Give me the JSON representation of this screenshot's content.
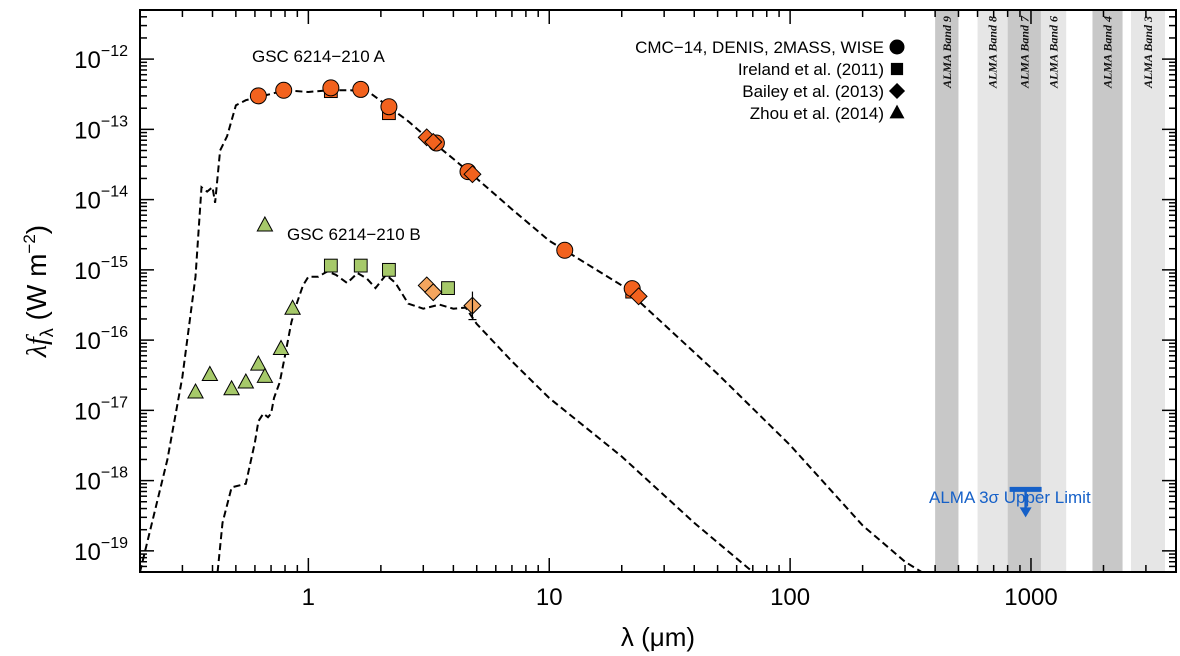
{
  "chart_data": {
    "type": "scatter",
    "x_scale": "log",
    "y_scale": "log",
    "xlim": [
      0.2,
      4000
    ],
    "ylim": [
      5e-20,
      5e-12
    ],
    "xlabel": "λ (μm)",
    "ylabel": "λf_λ (W m^-2)",
    "x_ticks": [
      {
        "value": 1,
        "label": "1"
      },
      {
        "value": 10,
        "label": "10"
      },
      {
        "value": 100,
        "label": "100"
      },
      {
        "value": 1000,
        "label": "1000"
      }
    ],
    "y_ticks": [
      {
        "value": 1e-12,
        "mant": "10",
        "exp": "−12"
      },
      {
        "value": 1e-13,
        "mant": "10",
        "exp": "−13"
      },
      {
        "value": 1e-14,
        "mant": "10",
        "exp": "−14"
      },
      {
        "value": 1e-15,
        "mant": "10",
        "exp": "−15"
      },
      {
        "value": 1e-16,
        "mant": "10",
        "exp": "−16"
      },
      {
        "value": 1e-17,
        "mant": "10",
        "exp": "−17"
      },
      {
        "value": 1e-18,
        "mant": "10",
        "exp": "−18"
      },
      {
        "value": 1e-19,
        "mant": "10",
        "exp": "−19"
      }
    ],
    "alma_bands": [
      {
        "label": "ALMA Band 9",
        "range": [
          400,
          500
        ],
        "shade": "#c8c8c8"
      },
      {
        "label": "ALMA Band 8",
        "range": [
          600,
          800
        ],
        "shade": "#e6e6e6"
      },
      {
        "label": "ALMA Band 7",
        "range": [
          800,
          1100
        ],
        "shade": "#c8c8c8"
      },
      {
        "label": "ALMA Band 6",
        "range": [
          1100,
          1400
        ],
        "shade": "#e6e6e6"
      },
      {
        "label": "ALMA Band 4",
        "range": [
          1800,
          2400
        ],
        "shade": "#c8c8c8"
      },
      {
        "label": "ALMA Band 3",
        "range": [
          2600,
          3600
        ],
        "shade": "#e6e6e6"
      }
    ],
    "annotations": {
      "primary": "GSC 6214−210 A",
      "companion": "GSC 6214−210 B",
      "alma_limit": "ALMA 3σ Upper Limit"
    },
    "legend": {
      "placement": "top-right",
      "entries": [
        {
          "label": "CMC−14, DENIS, 2MASS, WISE",
          "marker": "circle"
        },
        {
          "label": "Ireland et al. (2011)",
          "marker": "square"
        },
        {
          "label": "Bailey et al. (2013)",
          "marker": "diamond"
        },
        {
          "label": "Zhou et al. (2014)",
          "marker": "triangle"
        }
      ]
    },
    "colors": {
      "primary_points": "#f2621e",
      "companion_squares": "#a6c96a",
      "companion_diamonds": "#f4a55e",
      "companion_triangles": "#a6c96a",
      "alma_limit": "#1560c8",
      "model_line": "#000000"
    },
    "alma_upper_limit": {
      "x": 950,
      "y": 7.5e-19
    },
    "series": [
      {
        "name": "CMC−14, DENIS, 2MASS, WISE",
        "target": "A",
        "marker": "circle",
        "color": "#f2621e",
        "points": [
          [
            0.62,
            3e-13
          ],
          [
            0.79,
            3.6e-13
          ],
          [
            1.24,
            3.9e-13
          ],
          [
            1.65,
            3.7e-13
          ],
          [
            2.16,
            2.1e-13
          ],
          [
            3.4,
            6.4e-14
          ],
          [
            4.6,
            2.5e-14
          ],
          [
            11.6,
            1.9e-15
          ],
          [
            22.1,
            5.4e-16
          ]
        ]
      },
      {
        "name": "Ireland et al. (2011)",
        "target": "A",
        "marker": "square",
        "color": "#f2621e",
        "points": [
          [
            1.24,
            3.5e-13
          ],
          [
            2.16,
            1.7e-13
          ],
          [
            22.1,
            4.9e-16
          ]
        ]
      },
      {
        "name": "Bailey et al. (2013)",
        "target": "A",
        "marker": "diamond",
        "color": "#f2621e",
        "points": [
          [
            3.1,
            7.7e-14
          ],
          [
            3.3,
            6.6e-14
          ],
          [
            4.8,
            2.3e-14
          ],
          [
            23.5,
            4.2e-16
          ]
        ]
      },
      {
        "name": "Ireland et al. (2011)",
        "target": "B",
        "marker": "square",
        "color": "#a6c96a",
        "points": [
          [
            1.24,
            1.15e-15
          ],
          [
            1.65,
            1.15e-15
          ],
          [
            2.16,
            1e-15
          ],
          [
            3.8,
            5.5e-16
          ]
        ]
      },
      {
        "name": "Bailey et al. (2013)",
        "target": "B",
        "marker": "diamond",
        "color": "#f4a55e",
        "points": [
          [
            3.1,
            6e-16
          ],
          [
            3.3,
            4.8e-16
          ],
          [
            4.8,
            3.1e-16
          ]
        ]
      },
      {
        "name": "Zhou et al. (2014)",
        "target": "B",
        "marker": "triangle",
        "color": "#a6c96a",
        "points": [
          [
            0.34,
            1.8e-17
          ],
          [
            0.39,
            3.2e-17
          ],
          [
            0.48,
            2e-17
          ],
          [
            0.55,
            2.5e-17
          ],
          [
            0.62,
            4.5e-17
          ],
          [
            0.66,
            3e-17
          ],
          [
            0.77,
            7.5e-17
          ],
          [
            0.86,
            2.8e-16
          ],
          [
            0.66,
            4.3e-15
          ]
        ]
      }
    ],
    "models": [
      {
        "target": "A",
        "points": [
          [
            0.2,
            5e-20
          ],
          [
            0.26,
            2e-18
          ],
          [
            0.3,
            3e-17
          ],
          [
            0.34,
            8e-16
          ],
          [
            0.36,
            1.5e-14
          ],
          [
            0.38,
            1.3e-14
          ],
          [
            0.4,
            1.5e-14
          ],
          [
            0.41,
            9e-15
          ],
          [
            0.43,
            5e-14
          ],
          [
            0.46,
            8e-14
          ],
          [
            0.5,
            2.2e-13
          ],
          [
            0.55,
            2.6e-13
          ],
          [
            0.6,
            2.8e-13
          ],
          [
            0.7,
            3.2e-13
          ],
          [
            0.8,
            3.6e-13
          ],
          [
            1.0,
            3.4e-13
          ],
          [
            1.2,
            3.6e-13
          ],
          [
            1.5,
            3.6e-13
          ],
          [
            1.8,
            3.3e-13
          ],
          [
            2.2,
            2e-13
          ],
          [
            2.6,
            1.3e-13
          ],
          [
            3.0,
            8.5e-14
          ],
          [
            4.0,
            3.8e-14
          ],
          [
            5.0,
            2e-14
          ],
          [
            7.0,
            7.3e-15
          ],
          [
            10.0,
            2.6e-15
          ],
          [
            20.0,
            6e-16
          ],
          [
            50.0,
            3.3e-17
          ],
          [
            100.0,
            3.2e-18
          ],
          [
            200.0,
            2.3e-19
          ],
          [
            300.0,
            7e-20
          ],
          [
            400.0,
            3.8e-20
          ]
        ]
      },
      {
        "target": "B",
        "points": [
          [
            0.42,
            5e-20
          ],
          [
            0.44,
            2.5e-19
          ],
          [
            0.48,
            8e-19
          ],
          [
            0.55,
            9e-19
          ],
          [
            0.6,
            3.5e-18
          ],
          [
            0.62,
            7e-18
          ],
          [
            0.65,
            9e-18
          ],
          [
            0.68,
            8e-18
          ],
          [
            0.7,
            9e-18
          ],
          [
            0.72,
            1.5e-17
          ],
          [
            0.76,
            2.5e-17
          ],
          [
            0.8,
            6e-17
          ],
          [
            0.85,
            1.8e-16
          ],
          [
            0.9,
            3.5e-16
          ],
          [
            0.95,
            6e-16
          ],
          [
            1.0,
            8e-16
          ],
          [
            1.1,
            8e-16
          ],
          [
            1.2,
            9.5e-16
          ],
          [
            1.3,
            8.5e-16
          ],
          [
            1.45,
            6.5e-16
          ],
          [
            1.6,
            9e-16
          ],
          [
            1.75,
            7.5e-16
          ],
          [
            1.9,
            5.5e-16
          ],
          [
            2.1,
            8.5e-16
          ],
          [
            2.3,
            6.5e-16
          ],
          [
            2.6,
            3.3e-16
          ],
          [
            3.0,
            2.8e-16
          ],
          [
            3.5,
            3.2e-16
          ],
          [
            4.0,
            2.8e-16
          ],
          [
            4.5,
            2.9e-16
          ],
          [
            5.0,
            1.7e-16
          ],
          [
            7.0,
            5e-17
          ],
          [
            10.0,
            1.5e-17
          ],
          [
            20.0,
            2.2e-18
          ],
          [
            40.0,
            2.5e-19
          ],
          [
            70.0,
            5e-20
          ]
        ]
      }
    ]
  }
}
